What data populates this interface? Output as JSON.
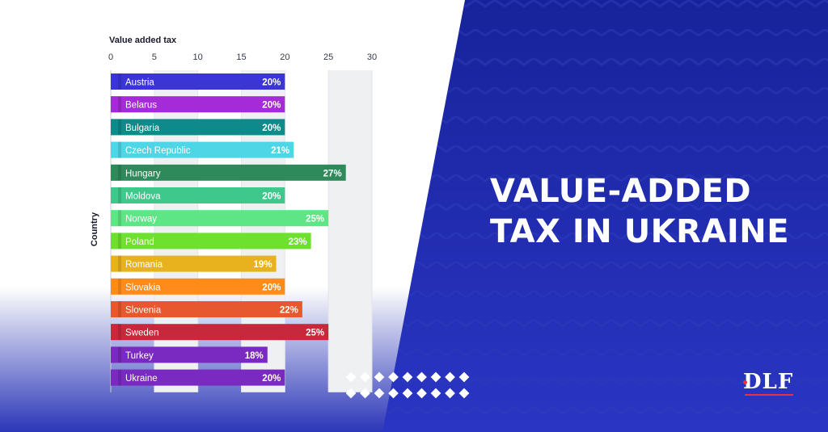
{
  "headline": {
    "line1": "VALUE-ADDED",
    "line2": "TAX IN UKRAINE"
  },
  "logo": {
    "text": "DLF"
  },
  "colors": {
    "navy": "#1c2aa8",
    "navy_dark": "#14207e",
    "white": "#ffffff"
  },
  "chart_data": {
    "type": "bar",
    "orientation": "horizontal",
    "xlabel": "Value added tax",
    "ylabel": "Country",
    "xlim": [
      0,
      30
    ],
    "ticks": [
      0,
      5,
      10,
      15,
      20,
      25,
      30
    ],
    "categories": [
      "Austria",
      "Belarus",
      "Bulgaria",
      "Czech Republic",
      "Hungary",
      "Moldova",
      "Norway",
      "Poland",
      "Romania",
      "Slovakia",
      "Slovenia",
      "Sweden",
      "Turkey",
      "Ukraine"
    ],
    "values": [
      20,
      20,
      20,
      21,
      27,
      20,
      25,
      23,
      19,
      20,
      22,
      25,
      18,
      20
    ],
    "value_labels": [
      "20%",
      "20%",
      "20%",
      "21%",
      "27%",
      "20%",
      "25%",
      "23%",
      "19%",
      "20%",
      "22%",
      "25%",
      "18%",
      "20%"
    ],
    "colors": [
      "#3b35d8",
      "#a52ad8",
      "#0e8a8a",
      "#4ed6e6",
      "#2e8a5a",
      "#3fc88c",
      "#5ee686",
      "#6ee030",
      "#e8b21e",
      "#ff8c1a",
      "#e8582e",
      "#c8283c",
      "#7a2ac0",
      "#7a2ac0"
    ]
  }
}
